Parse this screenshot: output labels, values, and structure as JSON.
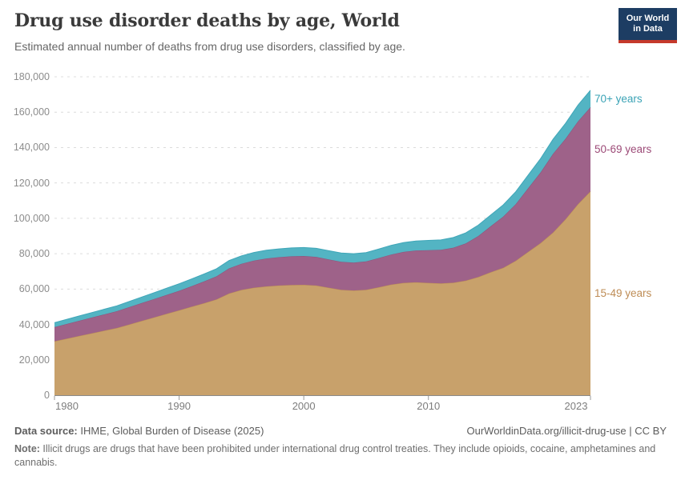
{
  "header": {
    "title": "Drug use disorder deaths by age, World",
    "subtitle": "Estimated annual number of deaths from drug use disorders, classified by age."
  },
  "logo": {
    "line1": "Our World",
    "line2": "in Data",
    "bg": "#1d3d63",
    "accent": "#c5392b"
  },
  "chart_data": {
    "type": "area",
    "stacked": true,
    "title": "Drug use disorder deaths by age, World",
    "xlabel": "",
    "ylabel": "",
    "grid": "dashed",
    "legend_position": "right-of-plot",
    "ylim": [
      0,
      180000
    ],
    "yticks": [
      0,
      20000,
      40000,
      60000,
      80000,
      100000,
      120000,
      140000,
      160000,
      180000
    ],
    "xticks": [
      1980,
      1990,
      2000,
      2010,
      2023
    ],
    "x": [
      1980,
      1981,
      1982,
      1983,
      1984,
      1985,
      1986,
      1987,
      1988,
      1989,
      1990,
      1991,
      1992,
      1993,
      1994,
      1995,
      1996,
      1997,
      1998,
      1999,
      2000,
      2001,
      2002,
      2003,
      2004,
      2005,
      2006,
      2007,
      2008,
      2009,
      2010,
      2011,
      2012,
      2013,
      2014,
      2015,
      2016,
      2017,
      2018,
      2019,
      2020,
      2021,
      2022,
      2023
    ],
    "series": [
      {
        "name": "15-49 years",
        "fill": "#C8A16B",
        "edge": "#BD8E55",
        "label_color": "#BE8C55",
        "values": [
          30500,
          32000,
          33500,
          35000,
          36500,
          38000,
          40000,
          42000,
          44000,
          46000,
          48000,
          50000,
          52000,
          54200,
          57500,
          59500,
          60800,
          61500,
          62000,
          62300,
          62400,
          62000,
          60800,
          59600,
          59200,
          59600,
          61000,
          62500,
          63500,
          63800,
          63500,
          63200,
          63600,
          64800,
          66800,
          69500,
          72000,
          76000,
          81000,
          86000,
          92000,
          99500,
          108000,
          115300
        ]
      },
      {
        "name": "50-69 years",
        "fill": "#9E6289",
        "edge": "#8F5279",
        "label_color": "#9C4A77",
        "values": [
          8000,
          8300,
          8600,
          8900,
          9200,
          9500,
          9800,
          10100,
          10400,
          10700,
          11000,
          11600,
          12300,
          13000,
          14200,
          14800,
          15300,
          15800,
          16000,
          16200,
          16300,
          16200,
          16000,
          15800,
          15800,
          16000,
          16500,
          17000,
          17500,
          18000,
          18500,
          19000,
          19800,
          21000,
          23200,
          26000,
          29000,
          32000,
          36000,
          40000,
          44500,
          45500,
          46800,
          47500
        ]
      },
      {
        "name": "70+ years",
        "fill": "#53B4C3",
        "edge": "#3FA6B8",
        "label_color": "#3BA3B6",
        "values": [
          2500,
          2600,
          2700,
          2800,
          2900,
          3000,
          3200,
          3400,
          3600,
          3800,
          4000,
          4100,
          4200,
          4300,
          4400,
          4500,
          4600,
          4650,
          4700,
          4750,
          4800,
          4850,
          4900,
          4950,
          5000,
          5050,
          5100,
          5200,
          5300,
          5400,
          5500,
          5600,
          5750,
          5950,
          6150,
          6400,
          6600,
          7000,
          7400,
          7800,
          8200,
          8700,
          9200,
          9600
        ]
      }
    ]
  },
  "footer": {
    "datasource_label": "Data source:",
    "datasource_value": " IHME, Global Burden of Disease (2025)",
    "link": "OurWorldinData.org/illicit-drug-use | CC BY",
    "note_label": "Note:",
    "note_text": " Illicit drugs are drugs that have been prohibited under international drug control treaties. They include opioids, cocaine, amphetamines and cannabis."
  }
}
